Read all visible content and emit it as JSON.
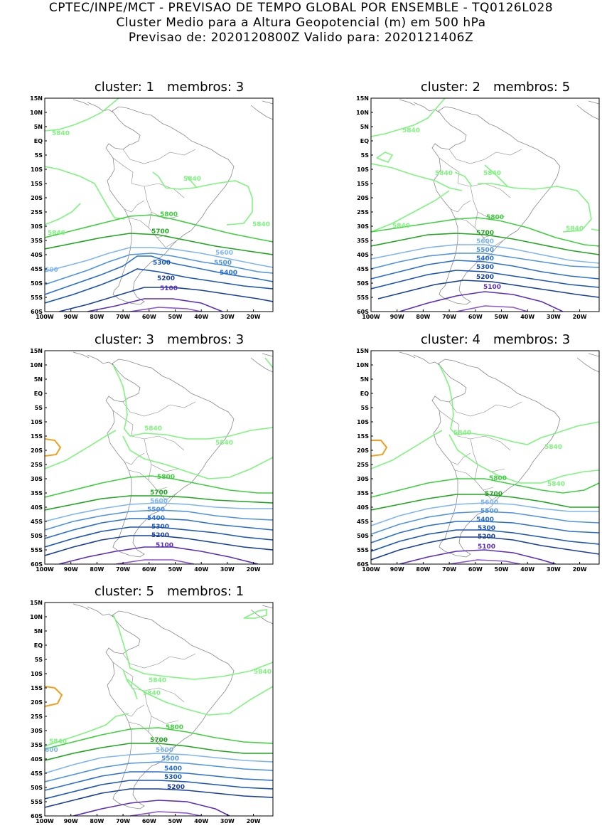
{
  "header": {
    "line1": "CPTEC/INPE/MCT - PREVISAO DE TEMPO GLOBAL POR ENSEMBLE - TQ0126L028",
    "line2": "Cluster Medio para a Altura Geopotencial (m) em 500 hPa",
    "line3": "Previsao de: 2020120800Z    Valido para: 2020121406Z"
  },
  "axes": {
    "lat_labels": [
      "15N",
      "10N",
      "5N",
      "EQ",
      "5S",
      "10S",
      "15S",
      "20S",
      "25S",
      "30S",
      "35S",
      "40S",
      "45S",
      "50S",
      "55S",
      "60S"
    ],
    "lon_labels": [
      "100W",
      "90W",
      "80W",
      "70W",
      "60W",
      "50W",
      "40W",
      "30W",
      "20W"
    ]
  },
  "colors": {
    "c5840": "#7ff47f",
    "c5800": "#3fcf3f",
    "c5700": "#1fa51f",
    "c5600": "#7fb5f0",
    "c5500": "#4f93e3",
    "c5400": "#2a6fd0",
    "c5300": "#1a55b8",
    "c5200": "#183f9c",
    "c5100": "#5a2fbd",
    "c5000": "#8a55d0",
    "c5880": "#f0a020",
    "coast": "#8a8a8a"
  },
  "panels": [
    {
      "cluster_label": "cluster:",
      "cluster_num": "1",
      "members_label": "membros:",
      "members_num": "3",
      "labels": {
        "l5840a": "5840",
        "l5840b": "5840",
        "l5840c": "5840",
        "l5840d": "5840",
        "l5800": "5800",
        "l5700": "5700",
        "l5600": "5600",
        "l5600b": "600",
        "l5500": "5500",
        "l5400": "5400",
        "l5300": "5300",
        "l5200": "5200",
        "l5100": "5100"
      }
    },
    {
      "cluster_label": "cluster:",
      "cluster_num": "2",
      "members_label": "membros:",
      "members_num": "5",
      "labels": {
        "l5840a": "5840",
        "l5840b": "5840",
        "l5840c": "5840",
        "l5840d": "5840",
        "l5840e": "5840",
        "l5800": "5800",
        "l5700": "5700",
        "l5600": "5600",
        "l5500": "5500",
        "l5400": "5400",
        "l5300": "5300",
        "l5200": "5200",
        "l5100": "5100"
      }
    },
    {
      "cluster_label": "cluster:",
      "cluster_num": "3",
      "members_label": "membros:",
      "members_num": "3",
      "labels": {
        "l5840a": "5840",
        "l5840b": "5840",
        "l5800": "5800",
        "l5700": "5700",
        "l5600": "5600",
        "l5500": "5500",
        "l5400": "5400",
        "l5300": "5300",
        "l5200": "5200",
        "l5100": "5100"
      }
    },
    {
      "cluster_label": "cluster:",
      "cluster_num": "4",
      "members_label": "membros:",
      "members_num": "3",
      "labels": {
        "l5840a": "5840",
        "l5840b": "5840",
        "l5840c": "5840",
        "l5800": "5800",
        "l5700": "5700",
        "l5600": "5600",
        "l5500": "5500",
        "l5400": "5400",
        "l5300": "5300",
        "l5200": "5200",
        "l5100": "5100"
      }
    },
    {
      "cluster_label": "cluster:",
      "cluster_num": "5",
      "members_label": "membros:",
      "members_num": "1",
      "labels": {
        "l5840a": "5840",
        "l5840b": "5840",
        "l5840c": "5840",
        "l5840d": "5840",
        "l5800": "5800",
        "l5700": "5700",
        "l5600": "5600",
        "l5600b": "600",
        "l5500": "5500",
        "l5400": "5400",
        "l5300": "5300",
        "l5200": "5200"
      }
    }
  ]
}
